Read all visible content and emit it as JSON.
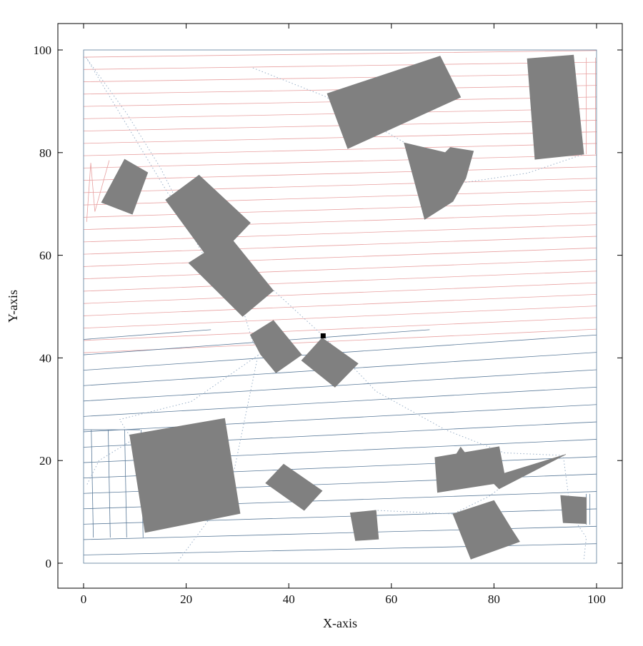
{
  "chart_data": {
    "type": "scatter",
    "title": "",
    "xlabel": "X-axis",
    "ylabel": "Y-axis",
    "xlim": [
      -5,
      105
    ],
    "ylim": [
      -5,
      105
    ],
    "xticks": [
      0,
      20,
      40,
      60,
      80,
      100
    ],
    "yticks": [
      0,
      20,
      40,
      60,
      80,
      100
    ],
    "grid": false,
    "legend": "none",
    "colors": {
      "obstacle": "#808080",
      "upper_path": "#e8a0a0",
      "lower_path": "#5a7a99",
      "connector": "#9ab0c8",
      "marker": "#000000",
      "frame": "#000000"
    },
    "workspace": [
      [
        0,
        0
      ],
      [
        100,
        0
      ],
      [
        100,
        100
      ],
      [
        0,
        100
      ]
    ],
    "obstacles": [
      [
        [
          47.5,
          91.5
        ],
        [
          69.5,
          98.8
        ],
        [
          73.5,
          90.8
        ],
        [
          51.5,
          80.8
        ]
      ],
      [
        [
          86.5,
          98.3
        ],
        [
          95.5,
          99.0
        ],
        [
          97.5,
          79.7
        ],
        [
          88.0,
          78.7
        ]
      ],
      [
        [
          62.5,
          81.9
        ],
        [
          70.5,
          80.0
        ],
        [
          71.5,
          81.0
        ],
        [
          76.0,
          80.3
        ],
        [
          74.5,
          75.0
        ],
        [
          72.0,
          70.5
        ],
        [
          66.5,
          67.0
        ]
      ],
      [
        [
          3.5,
          70.3
        ],
        [
          8.0,
          78.7
        ],
        [
          12.5,
          76.1
        ],
        [
          9.5,
          68.0
        ]
      ],
      [
        [
          16.0,
          70.8
        ],
        [
          22.5,
          75.6
        ],
        [
          32.5,
          66.3
        ],
        [
          25.0,
          58.5
        ]
      ],
      [
        [
          20.5,
          58.5
        ],
        [
          28.5,
          63.6
        ],
        [
          37.0,
          53.1
        ],
        [
          31.0,
          48.1
        ]
      ],
      [
        [
          32.5,
          44.5
        ],
        [
          37.0,
          47.3
        ],
        [
          42.5,
          40.6
        ],
        [
          37.5,
          37.1
        ],
        [
          34.5,
          40.7
        ]
      ],
      [
        [
          42.5,
          39.5
        ],
        [
          46.5,
          43.9
        ],
        [
          53.5,
          38.9
        ],
        [
          49.0,
          34.3
        ]
      ],
      [
        [
          9.0,
          25.0
        ],
        [
          27.5,
          28.2
        ],
        [
          30.5,
          9.7
        ],
        [
          12.0,
          6.0
        ]
      ],
      [
        [
          35.5,
          15.6
        ],
        [
          39.0,
          19.3
        ],
        [
          46.5,
          14.1
        ],
        [
          43.0,
          10.3
        ]
      ],
      [
        [
          52.0,
          9.8
        ],
        [
          57.0,
          10.3
        ],
        [
          57.5,
          4.7
        ],
        [
          53.0,
          4.4
        ]
      ],
      [
        [
          71.5,
          19.3
        ],
        [
          73.5,
          22.6
        ],
        [
          77.0,
          18.0
        ],
        [
          75.0,
          15.4
        ]
      ],
      [
        [
          68.5,
          20.6
        ],
        [
          81.0,
          22.7
        ],
        [
          82.0,
          17.5
        ],
        [
          94.0,
          21.2
        ],
        [
          81.0,
          14.5
        ],
        [
          80.0,
          15.5
        ],
        [
          69.0,
          13.8
        ]
      ],
      [
        [
          72.0,
          9.6
        ],
        [
          80.0,
          12.2
        ],
        [
          83.5,
          6.5
        ],
        [
          85.0,
          4.2
        ],
        [
          75.5,
          0.8
        ]
      ],
      [
        [
          93.0,
          13.2
        ],
        [
          98.0,
          12.8
        ],
        [
          98.0,
          7.7
        ],
        [
          93.5,
          7.9
        ]
      ]
    ],
    "marker_point": {
      "x": 46.7,
      "y": 44.3
    },
    "upper_sweep": {
      "y_left_start": 41.0,
      "y_right_start": 45.5,
      "spacing": 2.4,
      "y_max": 100.0,
      "tilt_bottom": 4.6,
      "tilt_top": 1.2
    },
    "lower_sweep": {
      "y_left_start": 1.6,
      "y_right_start": 3.8,
      "spacing": 3.0,
      "y_max": 45.5,
      "tilt_bottom": 2.2,
      "tilt_top": 7.9
    },
    "left_top_strip": [
      [
        0.6,
        66.5
      ],
      [
        1.4,
        78.0
      ],
      [
        2.2,
        68.5
      ],
      [
        5.0,
        78.5
      ]
    ],
    "left_bottom_strip_x": [
      1.5,
      4.8,
      8.0,
      11.2
    ],
    "right_top_strip_x": [
      98.0,
      99.8
    ],
    "right_bottom_strip_x": [
      98.0,
      98.7
    ],
    "connector_path": [
      [
        0.5,
        98.5
      ],
      [
        16.5,
        72.0
      ],
      [
        46.7,
        44.3
      ],
      [
        57.0,
        33.5
      ],
      [
        70.5,
        26.0
      ],
      [
        82.0,
        21.5
      ],
      [
        93.5,
        21.0
      ],
      [
        95.0,
        9.5
      ],
      [
        98.0,
        5.0
      ],
      [
        97.5,
        0.5
      ]
    ],
    "connector_path_2": [
      [
        18.5,
        0.5
      ],
      [
        28.5,
        14.0
      ],
      [
        34.0,
        40.5
      ],
      [
        21.0,
        31.5
      ],
      [
        7.0,
        28.0
      ],
      [
        9.5,
        24.0
      ],
      [
        3.0,
        20.0
      ],
      [
        0.5,
        15.0
      ]
    ],
    "connector_path_3": [
      [
        37.5,
        38.0
      ],
      [
        33.0,
        43.0
      ],
      [
        31.5,
        48.0
      ],
      [
        24.5,
        58.0
      ],
      [
        22.0,
        62.5
      ],
      [
        18.0,
        71.0
      ],
      [
        15.0,
        77.0
      ],
      [
        8.5,
        87.5
      ],
      [
        0.5,
        98.5
      ]
    ],
    "connector_path_4": [
      [
        33.0,
        96.5
      ],
      [
        47.0,
        91.0
      ],
      [
        62.5,
        82.0
      ],
      [
        66.5,
        67.0
      ],
      [
        73.0,
        74.0
      ],
      [
        86.5,
        76.0
      ],
      [
        97.5,
        79.7
      ]
    ],
    "connector_path_5": [
      [
        53.0,
        9.5
      ],
      [
        57.0,
        10.3
      ],
      [
        72.0,
        9.6
      ],
      [
        79.0,
        13.0
      ],
      [
        81.0,
        14.5
      ]
    ]
  }
}
